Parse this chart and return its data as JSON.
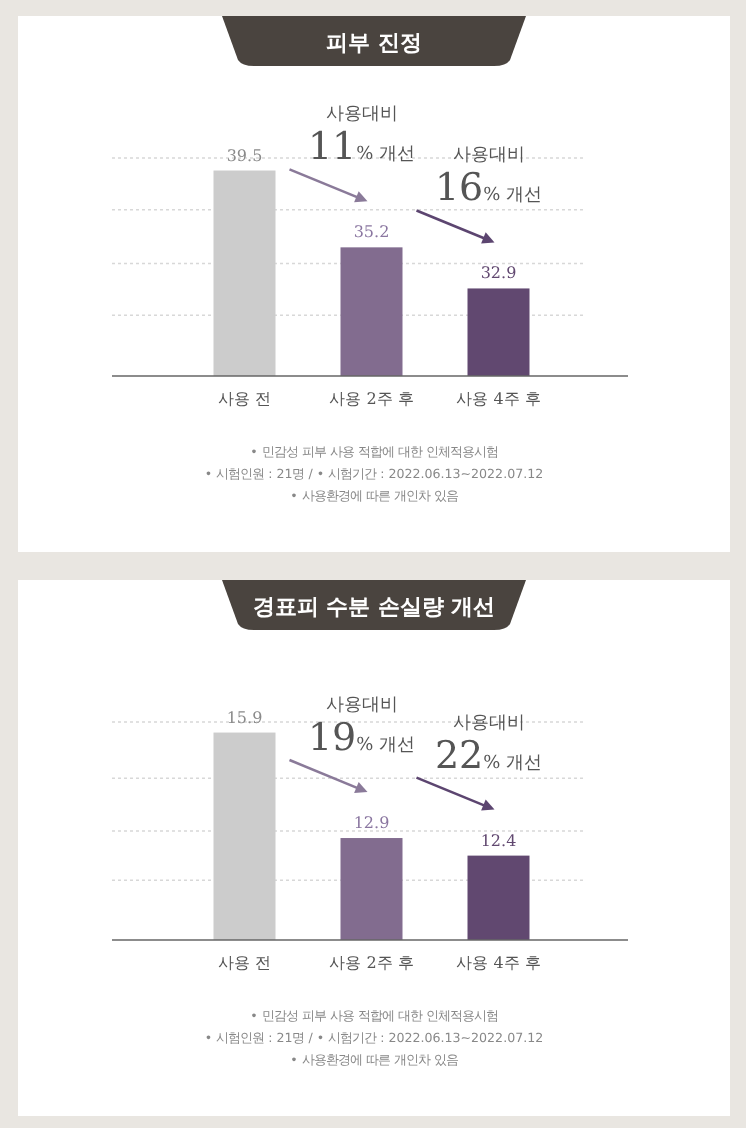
{
  "chart_data": [
    {
      "type": "bar",
      "title": "피부 진정",
      "categories": [
        "사용 전",
        "사용 2주 후",
        "사용 4주 후"
      ],
      "values": [
        39.5,
        35.2,
        32.9
      ],
      "colors": [
        "#cccccc",
        "#826c8f",
        "#614870"
      ],
      "data_labels": true,
      "ylim": [
        28,
        40.2
      ],
      "yticks": [
        {
          "value": 31.4,
          "label": null
        },
        {
          "value": 34.3,
          "label": null
        },
        {
          "value": 37.3,
          "label": null
        },
        {
          "value": 40.2,
          "label": null
        }
      ],
      "grid": "y",
      "tick_labels": "x",
      "annotations": [
        {
          "text": "사용대비\n11% 개선",
          "x": "사용 2주 후",
          "y": 35.2
        },
        {
          "text": "사용대비\n16% 개선",
          "x": "사용 4주 후",
          "y": 32.9
        },
        "• 민감성 피부 사용 적합에 대한 인체적용시험",
        "• 시험인원 : 21명 / • 시험기간 : 2022.06.13~2022.07.12",
        "• 사용환경에 따른 개인차 있음"
      ]
    },
    {
      "type": "bar",
      "title": "경표피 수분 손실량 개선",
      "categories": [
        "사용 전",
        "사용 2주 후",
        "사용 4주 후"
      ],
      "values": [
        15.9,
        12.9,
        12.4
      ],
      "colors": [
        "#cccccc",
        "#826c8f",
        "#614870"
      ],
      "data_labels": true,
      "ylim": [
        10,
        16.2
      ],
      "yticks": [
        {
          "value": 11.7,
          "label": null
        },
        {
          "value": 13.1,
          "label": null
        },
        {
          "value": 14.6,
          "label": null
        },
        {
          "value": 16.2,
          "label": null
        }
      ],
      "grid": "y",
      "tick_labels": "x",
      "annotations": [
        {
          "text": "사용대비\n19% 개선",
          "x": "사용 2주 후",
          "y": 12.9
        },
        {
          "text": "사용대비\n22% 개선",
          "x": "사용 4주 후",
          "y": 12.4
        },
        "• 민감성 피부 사용 적합에 대한 인체적용시험",
        "• 시험인원 : 21명 / • 시험기간 : 2022.06.13~2022.07.12",
        "• 사용환경에 따른 개인차 있음"
      ]
    }
  ]
}
